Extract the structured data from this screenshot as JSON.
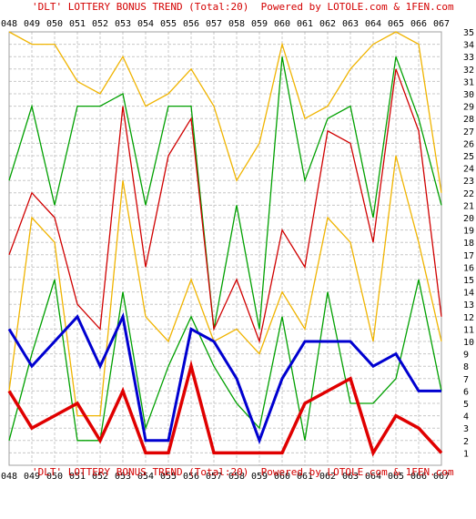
{
  "chart_data": {
    "type": "line",
    "title": "'DLT' LOTTERY BONUS TREND (Total:20)  Powered by LOTOLE.com & 1FEN.com",
    "footer": "'DLT' LOTTERY BONUS TREND (Total:20)  Powered by LOTOLE.com & 1FEN.com",
    "categories": [
      "048",
      "049",
      "050",
      "051",
      "052",
      "053",
      "054",
      "055",
      "056",
      "057",
      "058",
      "059",
      "060",
      "061",
      "062",
      "063",
      "064",
      "065",
      "066",
      "067"
    ],
    "y_ticks": [
      1,
      2,
      3,
      4,
      5,
      6,
      7,
      8,
      9,
      10,
      11,
      12,
      13,
      14,
      15,
      16,
      17,
      18,
      19,
      20,
      21,
      22,
      23,
      24,
      25,
      26,
      27,
      28,
      29,
      30,
      31,
      32,
      33,
      34,
      35
    ],
    "ylim": [
      0,
      35
    ],
    "grid": true,
    "series": [
      {
        "color": "#f0b400",
        "width": 1.3,
        "values": [
          35,
          34,
          34,
          31,
          30,
          33,
          29,
          30,
          32,
          29,
          23,
          26,
          34,
          28,
          29,
          32,
          34,
          35,
          34,
          22
        ]
      },
      {
        "color": "#00a000",
        "width": 1.3,
        "values": [
          23,
          29,
          21,
          29,
          29,
          30,
          21,
          29,
          29,
          11,
          21,
          11,
          33,
          23,
          28,
          29,
          20,
          33,
          28,
          21
        ]
      },
      {
        "color": "#d00000",
        "width": 1.3,
        "values": [
          17,
          22,
          20,
          13,
          11,
          29,
          16,
          25,
          28,
          11,
          15,
          10,
          19,
          16,
          27,
          26,
          18,
          32,
          27,
          12
        ]
      },
      {
        "color": "#f0b400",
        "width": 1.3,
        "values": [
          6,
          20,
          18,
          4,
          4,
          23,
          12,
          10,
          15,
          10,
          11,
          9,
          14,
          11,
          20,
          18,
          10,
          25,
          18,
          10
        ]
      },
      {
        "color": "#00a000",
        "width": 1.3,
        "values": [
          2,
          9,
          15,
          2,
          2,
          14,
          3,
          8,
          12,
          8,
          5,
          3,
          12,
          2,
          14,
          5,
          5,
          7,
          15,
          6
        ]
      },
      {
        "color": "#0000d0",
        "width": 3,
        "values": [
          11,
          8,
          10,
          12,
          8,
          12,
          2,
          2,
          11,
          10,
          7,
          2,
          7,
          10,
          10,
          10,
          8,
          9,
          6,
          6
        ]
      },
      {
        "color": "#e00000",
        "width": 3.5,
        "values": [
          6,
          3,
          4,
          5,
          2,
          6,
          1,
          1,
          8,
          1,
          1,
          1,
          1,
          5,
          6,
          7,
          1,
          4,
          3,
          1
        ]
      }
    ]
  }
}
